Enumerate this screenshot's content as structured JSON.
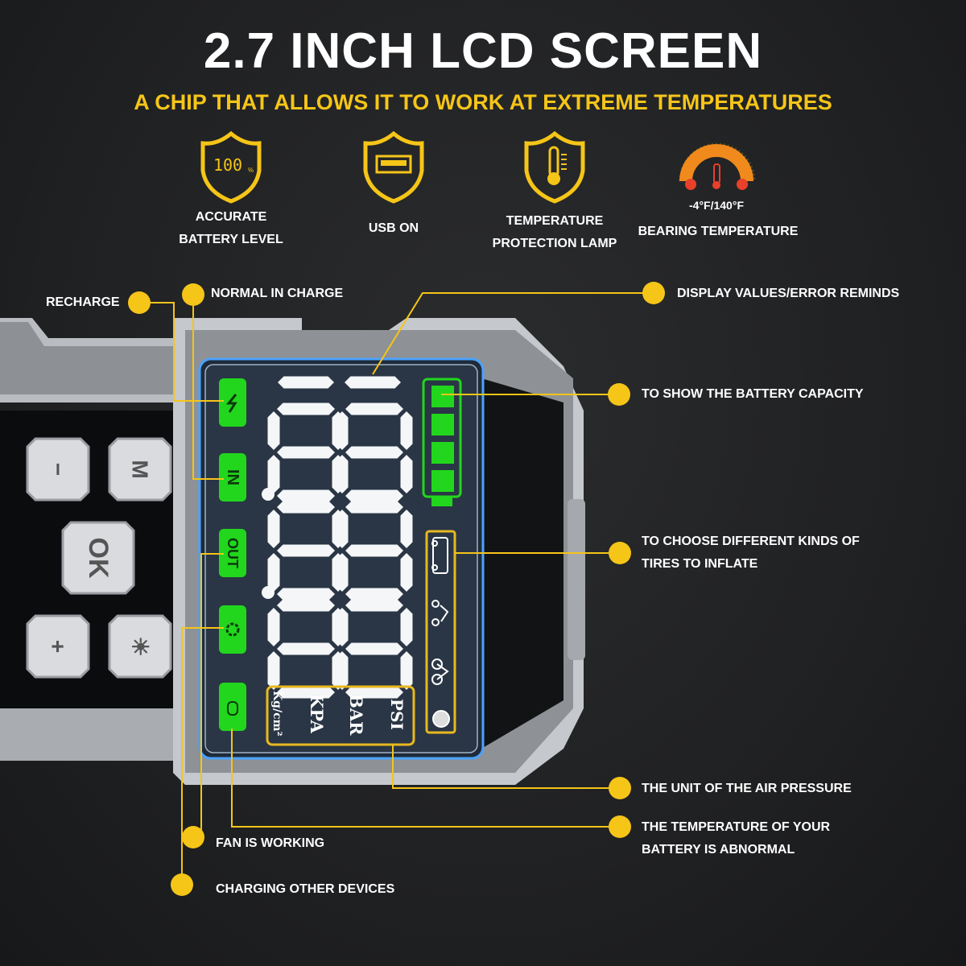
{
  "title": "2.7 INCH LCD SCREEN",
  "subtitle": "A CHIP THAT ALLOWS IT TO WORK AT EXTREME TEMPERATURES",
  "colors": {
    "accent": "#f5c518",
    "lcd_green": "#22d61e",
    "gauge_orange": "#f08a1c",
    "gauge_red": "#e8402a"
  },
  "features": [
    {
      "icon": "shield-battery-100-icon",
      "icon_text": "100",
      "icon_unit": "%",
      "line1": "ACCURATE",
      "line2": "BATTERY LEVEL"
    },
    {
      "icon": "shield-usb-icon",
      "line1": "USB ON",
      "line2": ""
    },
    {
      "icon": "shield-thermometer-icon",
      "line1": "TEMPERATURE",
      "line2": "PROTECTION LAMP"
    },
    {
      "icon": "temperature-gauge-icon",
      "range": "-4°F/140°F",
      "line1": "BEARING TEMPERATURE",
      "line2": ""
    }
  ],
  "callouts": {
    "recharge": "RECHARGE",
    "normal_in_charge": "NORMAL IN CHARGE",
    "display_values": "DISPLAY VALUES/ERROR REMINDS",
    "battery_capacity": "TO SHOW THE BATTERY CAPACITY",
    "tires_line1": "TO CHOOSE DIFFERENT KINDS OF",
    "tires_line2": "TIRES TO INFLATE",
    "pressure_unit": "THE UNIT OF THE AIR PRESSURE",
    "battery_temp_line1": "THE TEMPERATURE OF YOUR",
    "battery_temp_line2": "BATTERY IS ABNORMAL",
    "fan": "FAN IS WORKING",
    "charging_other": "CHARGING OTHER DEVICES"
  },
  "device": {
    "buttons": [
      "−",
      "M",
      "OK",
      "+",
      "☀"
    ],
    "lcd_indicators": [
      "lightning-icon",
      "IN",
      "OUT",
      "fan-icon",
      "thermometer-icon"
    ],
    "lcd_in": "IN",
    "lcd_out": "OUT",
    "units": [
      "PSI",
      "BAR",
      "KPA",
      "Kg/cm²"
    ],
    "digits": "888888",
    "battery_bars": 4,
    "tire_types": [
      "car-icon",
      "motorcycle-icon",
      "bicycle-icon",
      "ball-icon"
    ]
  }
}
